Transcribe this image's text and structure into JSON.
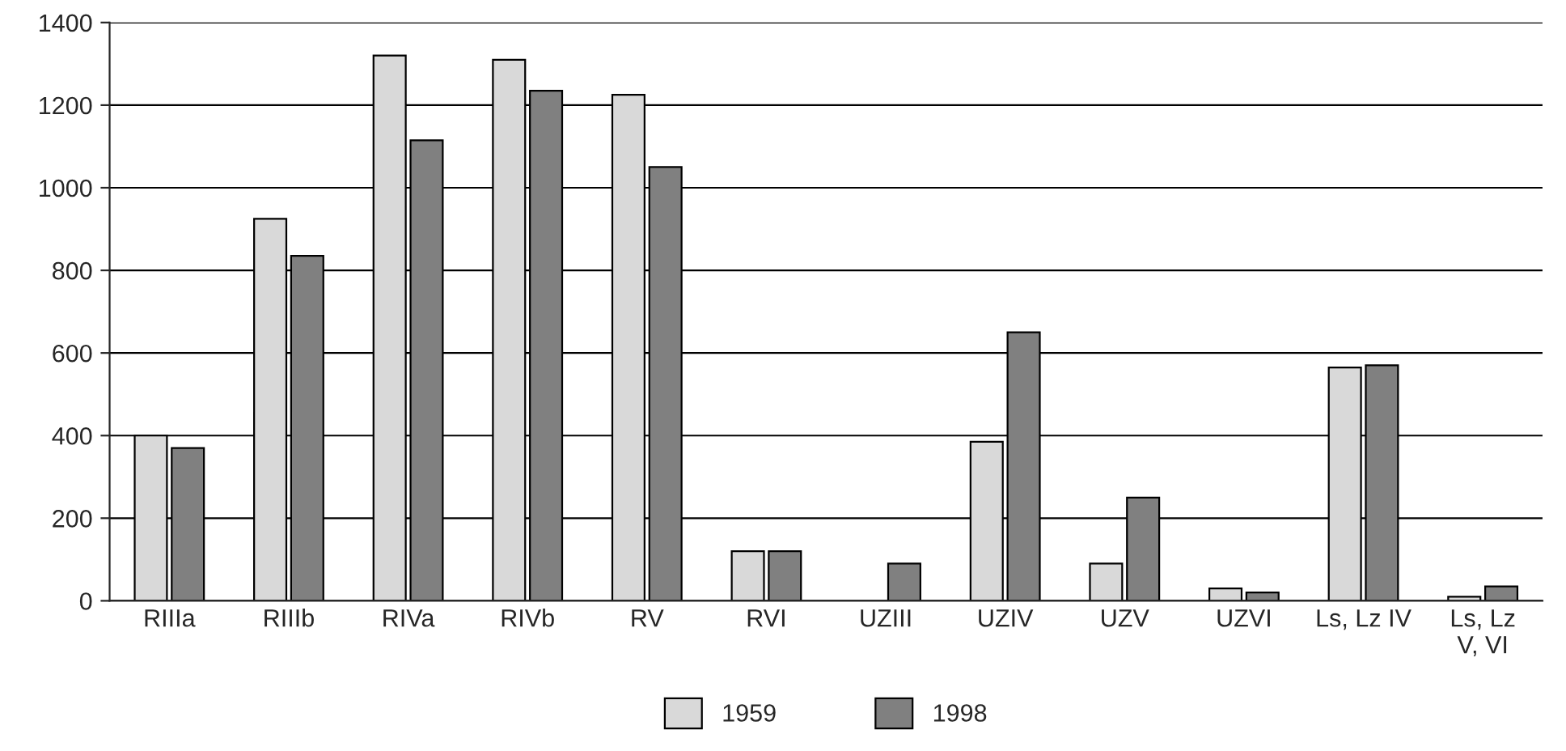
{
  "chart_data": {
    "type": "bar",
    "categories": [
      "RIIIa",
      "RIIIb",
      "RIVa",
      "RIVb",
      "RV",
      "RVI",
      "UZIII",
      "UZIV",
      "UZV",
      "UZVI",
      "Ls, Lz IV",
      "Ls, Lz\nV, VI"
    ],
    "series": [
      {
        "name": "1959",
        "color": "#d9d9d9",
        "values": [
          400,
          925,
          1320,
          1310,
          1225,
          120,
          null,
          385,
          90,
          30,
          565,
          10
        ]
      },
      {
        "name": "1998",
        "color": "#808080",
        "values": [
          370,
          835,
          1115,
          1235,
          1050,
          120,
          90,
          650,
          250,
          20,
          570,
          35
        ]
      }
    ],
    "ylim": [
      0,
      1400
    ],
    "yticks": [
      0,
      200,
      400,
      600,
      800,
      1000,
      1200,
      1400
    ],
    "grid": "y",
    "legend": "bottom"
  }
}
